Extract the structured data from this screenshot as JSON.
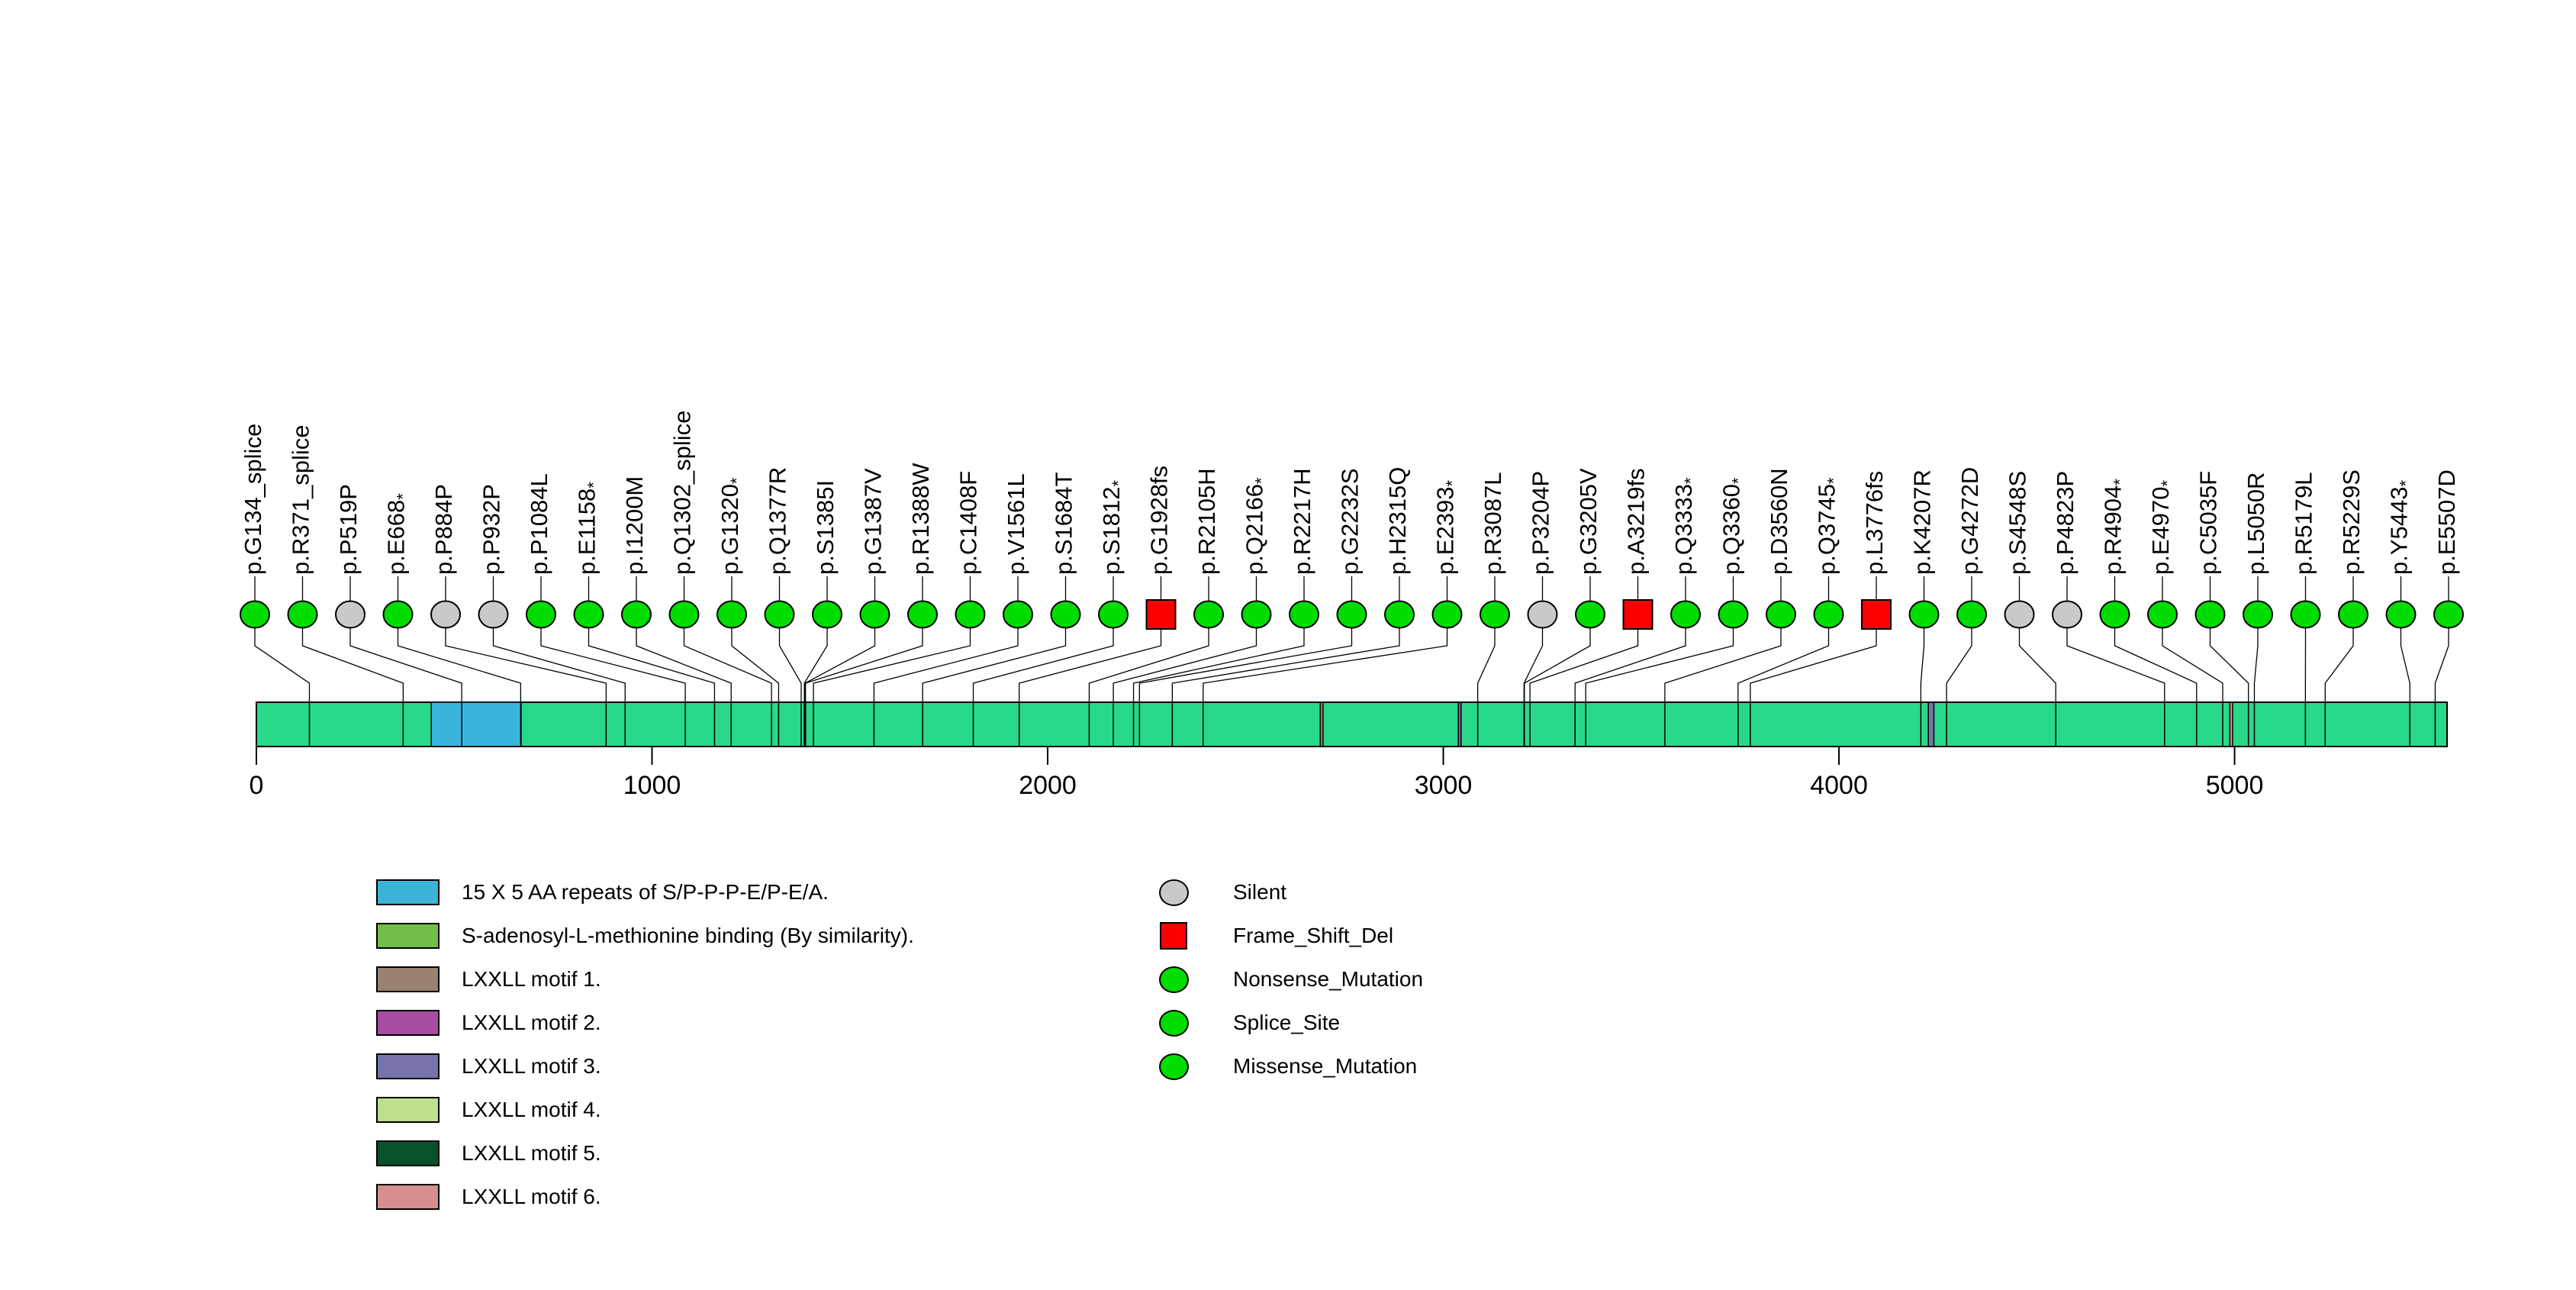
{
  "chart_data": {
    "type": "lollipop",
    "title": "",
    "protein_length": 5537,
    "axis_ticks": [
      0,
      1000,
      2000,
      3000,
      4000,
      5000
    ],
    "colors": {
      "background": "#FFFFFF",
      "backbone": "#29D98B",
      "line": "#000000",
      "marker_green": "#00DC00",
      "marker_gray": "#C9C9C9",
      "marker_red": "#FA0000"
    },
    "mutations": [
      {
        "label": "p.G134_splice",
        "aa": 134,
        "type": "Splice_Site"
      },
      {
        "label": "p.R371_splice",
        "aa": 371,
        "type": "Splice_Site"
      },
      {
        "label": "p.P519P",
        "aa": 519,
        "type": "Silent"
      },
      {
        "label": "p.E668*",
        "aa": 668,
        "type": "Nonsense_Mutation"
      },
      {
        "label": "p.P884P",
        "aa": 884,
        "type": "Silent"
      },
      {
        "label": "p.P932P",
        "aa": 932,
        "type": "Silent"
      },
      {
        "label": "p.P1084L",
        "aa": 1084,
        "type": "Missense_Mutation"
      },
      {
        "label": "p.E1158*",
        "aa": 1158,
        "type": "Nonsense_Mutation"
      },
      {
        "label": "p.I1200M",
        "aa": 1200,
        "type": "Missense_Mutation"
      },
      {
        "label": "p.Q1302_splice",
        "aa": 1302,
        "type": "Splice_Site"
      },
      {
        "label": "p.G1320*",
        "aa": 1320,
        "type": "Nonsense_Mutation"
      },
      {
        "label": "p.Q1377R",
        "aa": 1377,
        "type": "Missense_Mutation"
      },
      {
        "label": "p.S1385I",
        "aa": 1385,
        "type": "Missense_Mutation"
      },
      {
        "label": "p.G1387V",
        "aa": 1387,
        "type": "Missense_Mutation"
      },
      {
        "label": "p.R1388W",
        "aa": 1388,
        "type": "Missense_Mutation"
      },
      {
        "label": "p.C1408F",
        "aa": 1408,
        "type": "Missense_Mutation"
      },
      {
        "label": "p.V1561L",
        "aa": 1561,
        "type": "Missense_Mutation"
      },
      {
        "label": "p.S1684T",
        "aa": 1684,
        "type": "Missense_Mutation"
      },
      {
        "label": "p.S1812*",
        "aa": 1812,
        "type": "Nonsense_Mutation"
      },
      {
        "label": "p.G1928fs",
        "aa": 1928,
        "type": "Frame_Shift_Del"
      },
      {
        "label": "p.R2105H",
        "aa": 2105,
        "type": "Missense_Mutation"
      },
      {
        "label": "p.Q2166*",
        "aa": 2166,
        "type": "Nonsense_Mutation"
      },
      {
        "label": "p.R2217H",
        "aa": 2217,
        "type": "Missense_Mutation"
      },
      {
        "label": "p.G2232S",
        "aa": 2232,
        "type": "Missense_Mutation"
      },
      {
        "label": "p.H2315Q",
        "aa": 2315,
        "type": "Missense_Mutation"
      },
      {
        "label": "p.E2393*",
        "aa": 2393,
        "type": "Nonsense_Mutation"
      },
      {
        "label": "p.R3087L",
        "aa": 3087,
        "type": "Missense_Mutation"
      },
      {
        "label": "p.P3204P",
        "aa": 3204,
        "type": "Silent"
      },
      {
        "label": "p.G3205V",
        "aa": 3205,
        "type": "Missense_Mutation"
      },
      {
        "label": "p.A3219fs",
        "aa": 3219,
        "type": "Frame_Shift_Del"
      },
      {
        "label": "p.Q3333*",
        "aa": 3333,
        "type": "Nonsense_Mutation"
      },
      {
        "label": "p.Q3360*",
        "aa": 3360,
        "type": "Nonsense_Mutation"
      },
      {
        "label": "p.D3560N",
        "aa": 3560,
        "type": "Missense_Mutation"
      },
      {
        "label": "p.Q3745*",
        "aa": 3745,
        "type": "Nonsense_Mutation"
      },
      {
        "label": "p.L3776fs",
        "aa": 3776,
        "type": "Frame_Shift_Del"
      },
      {
        "label": "p.K4207R",
        "aa": 4207,
        "type": "Missense_Mutation"
      },
      {
        "label": "p.G4272D",
        "aa": 4272,
        "type": "Missense_Mutation"
      },
      {
        "label": "p.S4548S",
        "aa": 4548,
        "type": "Silent"
      },
      {
        "label": "p.P4823P",
        "aa": 4823,
        "type": "Silent"
      },
      {
        "label": "p.R4904*",
        "aa": 4904,
        "type": "Nonsense_Mutation"
      },
      {
        "label": "p.E4970*",
        "aa": 4970,
        "type": "Nonsense_Mutation"
      },
      {
        "label": "p.C5035F",
        "aa": 5035,
        "type": "Missense_Mutation"
      },
      {
        "label": "p.L5050R",
        "aa": 5050,
        "type": "Missense_Mutation"
      },
      {
        "label": "p.R5179L",
        "aa": 5179,
        "type": "Missense_Mutation"
      },
      {
        "label": "p.R5229S",
        "aa": 5229,
        "type": "Missense_Mutation"
      },
      {
        "label": "p.Y5443*",
        "aa": 5443,
        "type": "Nonsense_Mutation"
      },
      {
        "label": "p.E5507D",
        "aa": 5507,
        "type": "Missense_Mutation"
      }
    ],
    "domains_on_bar": [
      {
        "name": "15 X 5 AA repeats of S/P-P-P-E/P-E/A.",
        "start": 442,
        "end": 669,
        "color": "#39B5DD"
      },
      {
        "name": "LXXLL motif 1.",
        "start": 2689,
        "end": 2696,
        "color": "#9A8170"
      },
      {
        "name": "LXXLL motif 2.",
        "start": 3038,
        "end": 3045,
        "color": "#A74CA0"
      },
      {
        "name": "LXXLL motif 3.",
        "start": 4226,
        "end": 4240,
        "color": "#7774AD"
      },
      {
        "name": "LXXLL motif 6.",
        "start": 4988,
        "end": 4995,
        "color": "#D88E90"
      }
    ],
    "domain_legend": [
      {
        "label": "15 X 5 AA repeats of S/P-P-P-E/P-E/A.",
        "color": "#3CB4D8"
      },
      {
        "label": "S-adenosyl-L-methionine binding (By similarity).",
        "color": "#71BE48"
      },
      {
        "label": "LXXLL motif 1.",
        "color": "#9A8170"
      },
      {
        "label": "LXXLL motif 2.",
        "color": "#A74CA0"
      },
      {
        "label": "LXXLL motif 3.",
        "color": "#7774AD"
      },
      {
        "label": "LXXLL motif 4.",
        "color": "#BEE08E"
      },
      {
        "label": "LXXLL motif 5.",
        "color": "#07512B"
      },
      {
        "label": "LXXLL motif 6.",
        "color": "#D88E90"
      }
    ],
    "mutation_type_legend": [
      {
        "label": "Silent",
        "shape": "circle",
        "color": "#C9C9C9"
      },
      {
        "label": "Frame_Shift_Del",
        "shape": "square",
        "color": "#FA0000"
      },
      {
        "label": "Nonsense_Mutation",
        "shape": "circle",
        "color": "#00DC00"
      },
      {
        "label": "Splice_Site",
        "shape": "circle",
        "color": "#00DC00"
      },
      {
        "label": "Missense_Mutation",
        "shape": "circle",
        "color": "#00DC00"
      }
    ]
  }
}
